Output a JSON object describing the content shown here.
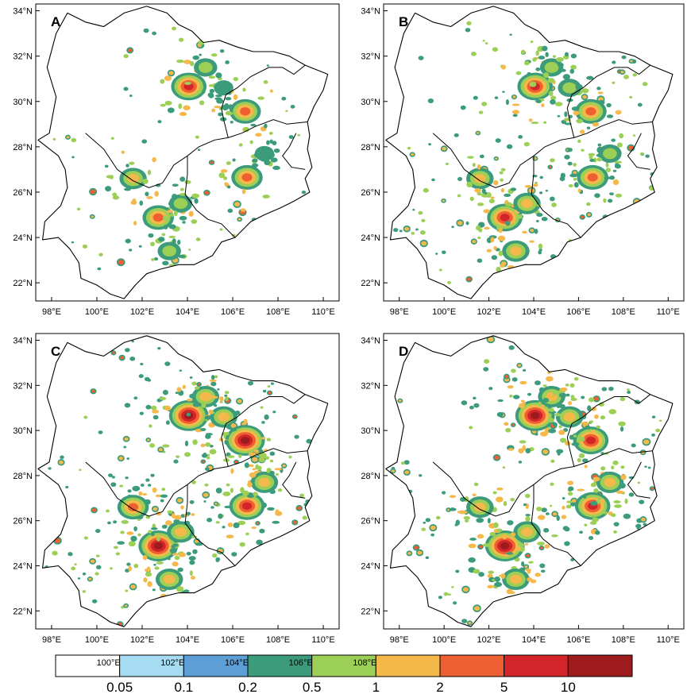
{
  "colors": {
    "boundary": "#000000",
    "bins": [
      "#ffffff",
      "#a6dcf2",
      "#5b9fd6",
      "#3b9b7a",
      "#9ccf55",
      "#f5b84a",
      "#ee5f32",
      "#d3242a",
      "#9d1b1d"
    ]
  },
  "colorbar": {
    "labels": [
      "0.05",
      "0.1",
      "0.2",
      "0.5",
      "1",
      "2",
      "5",
      "10"
    ],
    "bin_colors": [
      "#ffffff",
      "#a6dcf2",
      "#5b9fd6",
      "#3b9b7a",
      "#9ccf55",
      "#f5b84a",
      "#ee5f32",
      "#d3242a",
      "#9d1b1d"
    ],
    "stray_tick_labels": [
      "100°E",
      "102°E",
      "104°E",
      "106°E",
      "108°E"
    ]
  },
  "axes": {
    "lon_labels": [
      "98°E",
      "100°E",
      "102°E",
      "104°E",
      "106°E",
      "108°E",
      "110°E"
    ],
    "lon_values": [
      98,
      100,
      102,
      104,
      106,
      108,
      110
    ],
    "lat_labels": [
      "22°N",
      "24°N",
      "26°N",
      "28°N",
      "30°N",
      "32°N",
      "34°N"
    ],
    "lat_values": [
      22,
      24,
      26,
      28,
      30,
      32,
      34
    ],
    "lon_range": [
      97.3,
      110.7
    ],
    "lat_range": [
      21.2,
      34.3
    ]
  },
  "panels": [
    {
      "letter": "A",
      "lon_labels": [
        "98°E",
        "100°E",
        "102°E",
        "104°E",
        "106°E",
        "108°E",
        "110°E"
      ],
      "hotspots": [
        {
          "lon": 104.06,
          "lat": 30.66,
          "level": 7
        },
        {
          "lon": 106.55,
          "lat": 29.56,
          "level": 6
        },
        {
          "lon": 102.71,
          "lat": 24.88,
          "level": 6
        },
        {
          "lon": 106.63,
          "lat": 26.65,
          "level": 6
        },
        {
          "lon": 101.6,
          "lat": 26.6,
          "level": 5
        },
        {
          "lon": 103.7,
          "lat": 25.5,
          "level": 4
        },
        {
          "lon": 103.2,
          "lat": 23.4,
          "level": 4
        },
        {
          "lon": 104.8,
          "lat": 31.5,
          "level": 4
        },
        {
          "lon": 105.6,
          "lat": 30.6,
          "level": 3
        },
        {
          "lon": 107.4,
          "lat": 27.7,
          "level": 3
        }
      ],
      "spot_density": 0.6
    },
    {
      "letter": "B",
      "lon_labels": [
        "98°E",
        "100°E",
        "102°E",
        "104°E",
        "106°E",
        "108°E",
        "110°E"
      ],
      "hotspots": [
        {
          "lon": 104.06,
          "lat": 30.66,
          "level": 7
        },
        {
          "lon": 106.55,
          "lat": 29.56,
          "level": 6
        },
        {
          "lon": 102.71,
          "lat": 24.88,
          "level": 7
        },
        {
          "lon": 106.63,
          "lat": 26.65,
          "level": 6
        },
        {
          "lon": 101.6,
          "lat": 26.6,
          "level": 5
        },
        {
          "lon": 103.7,
          "lat": 25.5,
          "level": 5
        },
        {
          "lon": 103.2,
          "lat": 23.4,
          "level": 5
        },
        {
          "lon": 104.8,
          "lat": 31.5,
          "level": 4
        },
        {
          "lon": 105.6,
          "lat": 30.6,
          "level": 4
        },
        {
          "lon": 107.4,
          "lat": 27.7,
          "level": 4
        }
      ],
      "spot_density": 1.0
    },
    {
      "letter": "C",
      "lon_labels": [
        "98°E",
        "100°E",
        "102°E",
        "104°E",
        "106°E",
        "108°E",
        "110°E"
      ],
      "hotspots": [
        {
          "lon": 104.06,
          "lat": 30.66,
          "level": 8
        },
        {
          "lon": 106.55,
          "lat": 29.56,
          "level": 8
        },
        {
          "lon": 102.71,
          "lat": 24.88,
          "level": 8
        },
        {
          "lon": 106.63,
          "lat": 26.65,
          "level": 7
        },
        {
          "lon": 101.6,
          "lat": 26.6,
          "level": 6
        },
        {
          "lon": 103.7,
          "lat": 25.5,
          "level": 5
        },
        {
          "lon": 103.2,
          "lat": 23.4,
          "level": 5
        },
        {
          "lon": 104.8,
          "lat": 31.5,
          "level": 5
        },
        {
          "lon": 105.6,
          "lat": 30.6,
          "level": 5
        },
        {
          "lon": 107.4,
          "lat": 27.7,
          "level": 5
        }
      ],
      "spot_density": 1.3
    },
    {
      "letter": "D",
      "lon_labels": [
        "98°E",
        "100°E",
        "102°E",
        "104°E",
        "106°E",
        "108°E",
        "110°E"
      ],
      "hotspots": [
        {
          "lon": 104.06,
          "lat": 30.66,
          "level": 8
        },
        {
          "lon": 106.55,
          "lat": 29.56,
          "level": 7
        },
        {
          "lon": 102.71,
          "lat": 24.88,
          "level": 8
        },
        {
          "lon": 106.63,
          "lat": 26.65,
          "level": 7
        },
        {
          "lon": 101.6,
          "lat": 26.6,
          "level": 5
        },
        {
          "lon": 103.7,
          "lat": 25.5,
          "level": 5
        },
        {
          "lon": 103.2,
          "lat": 23.4,
          "level": 5
        },
        {
          "lon": 104.8,
          "lat": 31.5,
          "level": 5
        },
        {
          "lon": 105.6,
          "lat": 30.6,
          "level": 5
        },
        {
          "lon": 107.4,
          "lat": 27.7,
          "level": 5
        }
      ],
      "spot_density": 1.2
    }
  ],
  "region": {
    "outline": [
      [
        97.4,
        28.3
      ],
      [
        97.9,
        28.6
      ],
      [
        98.2,
        30.2
      ],
      [
        97.8,
        31.5
      ],
      [
        98.2,
        33.0
      ],
      [
        98.7,
        33.9
      ],
      [
        99.5,
        33.5
      ],
      [
        100.3,
        33.3
      ],
      [
        101.2,
        33.9
      ],
      [
        102.2,
        34.2
      ],
      [
        103.1,
        33.9
      ],
      [
        103.6,
        33.4
      ],
      [
        104.2,
        33.1
      ],
      [
        104.7,
        32.6
      ],
      [
        105.4,
        32.7
      ],
      [
        106.2,
        32.4
      ],
      [
        106.9,
        32.2
      ],
      [
        107.8,
        32.2
      ],
      [
        108.5,
        32.0
      ],
      [
        109.2,
        31.6
      ],
      [
        110.2,
        31.2
      ],
      [
        110.0,
        30.5
      ],
      [
        109.6,
        29.8
      ],
      [
        109.3,
        29.1
      ],
      [
        109.4,
        28.5
      ],
      [
        109.3,
        27.9
      ],
      [
        109.5,
        27.1
      ],
      [
        109.2,
        26.6
      ],
      [
        109.4,
        26.0
      ],
      [
        108.7,
        25.6
      ],
      [
        108.1,
        25.3
      ],
      [
        107.4,
        25.0
      ],
      [
        106.8,
        24.7
      ],
      [
        106.1,
        24.0
      ],
      [
        105.5,
        23.8
      ],
      [
        105.1,
        23.2
      ],
      [
        104.3,
        22.8
      ],
      [
        103.6,
        22.8
      ],
      [
        102.8,
        22.6
      ],
      [
        102.2,
        22.4
      ],
      [
        101.7,
        21.9
      ],
      [
        101.2,
        21.3
      ],
      [
        100.6,
        21.5
      ],
      [
        100.0,
        21.9
      ],
      [
        99.3,
        22.2
      ],
      [
        99.2,
        22.9
      ],
      [
        98.8,
        23.5
      ],
      [
        98.3,
        24.0
      ],
      [
        97.6,
        23.9
      ],
      [
        97.7,
        24.7
      ],
      [
        98.4,
        25.4
      ],
      [
        98.7,
        26.2
      ],
      [
        98.6,
        27.0
      ],
      [
        98.3,
        27.6
      ],
      [
        97.4,
        28.3
      ]
    ],
    "inner_borders": [
      [
        [
          99.5,
          28.6
        ],
        [
          100.3,
          27.9
        ],
        [
          100.9,
          27.0
        ],
        [
          101.6,
          26.5
        ],
        [
          102.3,
          26.2
        ],
        [
          102.9,
          26.4
        ],
        [
          103.4,
          27.2
        ],
        [
          104.0,
          27.6
        ],
        [
          104.5,
          28.0
        ],
        [
          105.2,
          28.3
        ],
        [
          105.8,
          28.4
        ],
        [
          106.4,
          28.6
        ],
        [
          107.0,
          28.9
        ],
        [
          107.8,
          29.2
        ],
        [
          108.4,
          29.0
        ],
        [
          109.3,
          29.1
        ]
      ],
      [
        [
          104.0,
          27.6
        ],
        [
          104.0,
          26.8
        ],
        [
          103.9,
          25.9
        ],
        [
          104.4,
          25.2
        ],
        [
          104.9,
          24.8
        ],
        [
          105.5,
          24.6
        ],
        [
          106.1,
          24.0
        ]
      ],
      [
        [
          105.8,
          28.4
        ],
        [
          105.6,
          29.2
        ],
        [
          105.5,
          29.7
        ],
        [
          105.7,
          30.3
        ],
        [
          106.2,
          30.6
        ],
        [
          106.8,
          31.1
        ],
        [
          107.6,
          31.5
        ],
        [
          108.2,
          31.5
        ],
        [
          108.7,
          31.2
        ],
        [
          109.2,
          31.6
        ]
      ],
      [
        [
          108.8,
          28.6
        ],
        [
          108.5,
          28.0
        ],
        [
          108.2,
          27.6
        ],
        [
          108.6,
          27.1
        ],
        [
          109.2,
          27.0
        ]
      ]
    ]
  }
}
